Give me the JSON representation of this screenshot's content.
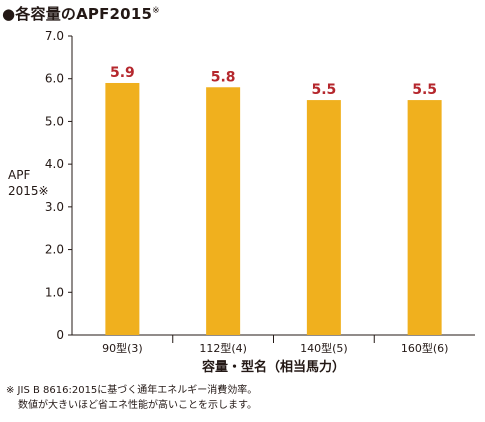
{
  "title_marker": "●",
  "title": "各容量のAPF2015",
  "title_sup": "※",
  "chart_data": {
    "type": "bar",
    "title": "各容量のAPF2015※",
    "categories": [
      "90型(3)",
      "112型(4)",
      "140型(5)",
      "160型(6)"
    ],
    "values": [
      5.9,
      5.8,
      5.5,
      5.5
    ],
    "data_labels": [
      "5.9",
      "5.8",
      "5.5",
      "5.5"
    ],
    "ylabel_line1": "APF",
    "ylabel_line2": "2015※",
    "xlabel": "容量・型名（相当馬力）",
    "ylim": [
      0,
      7
    ],
    "yticks": [
      "0",
      "1.0",
      "2.0",
      "3.0",
      "4.0",
      "5.0",
      "6.0",
      "7.0"
    ],
    "grid": false,
    "legend": "none",
    "bar_color": "#f0b01e",
    "label_color": "#b5272d",
    "axis_color": "#231815"
  },
  "footnote_line1": "※ JIS B 8616:2015に基づく通年エネルギー消費効率。",
  "footnote_line2": "数値が大きいほど省エネ性能が高いことを示します。"
}
